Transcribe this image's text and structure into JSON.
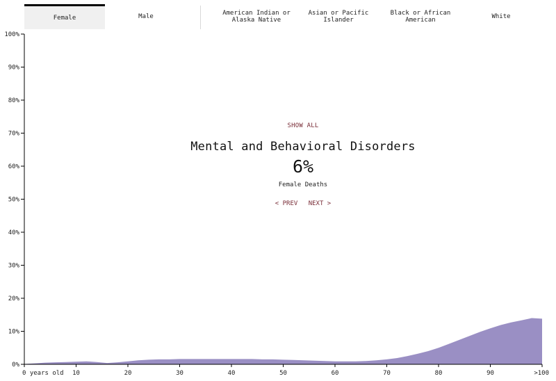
{
  "tabs": [
    {
      "label": "Female",
      "active": true
    },
    {
      "label": "Male",
      "active": false
    },
    {
      "label": "American Indian or\nAlaska Native",
      "active": false
    },
    {
      "label": "Asian or Pacific\nIslander",
      "active": false
    },
    {
      "label": "Black or African\nAmerican",
      "active": false
    },
    {
      "label": "White",
      "active": false
    }
  ],
  "overlay": {
    "show_all": "SHOW ALL",
    "title": "Mental and Behavioral Disorders",
    "value": "6%",
    "subtitle": "Female Deaths",
    "prev": "< PREV",
    "next": "NEXT >"
  },
  "colors": {
    "area_fill": "#9a8fc4",
    "link": "#7a2e38",
    "active_tab_bg": "#f0f0f0"
  },
  "chart_data": {
    "type": "area",
    "title": "Mental and Behavioral Disorders",
    "xlabel": "",
    "ylabel": "",
    "xlim": [
      0,
      100
    ],
    "ylim": [
      0,
      100
    ],
    "x_ticks": [
      0,
      10,
      20,
      30,
      40,
      50,
      60,
      70,
      80,
      90,
      100
    ],
    "x_tick_labels": [
      "0 years old",
      "10",
      "20",
      "30",
      "40",
      "50",
      "60",
      "70",
      "80",
      "90",
      ">100"
    ],
    "y_ticks": [
      0,
      10,
      20,
      30,
      40,
      50,
      60,
      70,
      80,
      90,
      100
    ],
    "y_tick_labels": [
      "0%",
      "10%",
      "20%",
      "30%",
      "40%",
      "50%",
      "60%",
      "70%",
      "80%",
      "90%",
      "100%"
    ],
    "series": [
      {
        "x": [
          0,
          2,
          4,
          6,
          8,
          10,
          12,
          14,
          16,
          18,
          20,
          22,
          24,
          26,
          28,
          30,
          32,
          34,
          36,
          38,
          40,
          42,
          44,
          46,
          48,
          50,
          52,
          54,
          56,
          58,
          60,
          62,
          64,
          66,
          68,
          70,
          72,
          74,
          76,
          78,
          80,
          82,
          84,
          86,
          88,
          90,
          92,
          94,
          96,
          98,
          100
        ],
        "values": [
          0.1,
          0.3,
          0.5,
          0.6,
          0.7,
          0.8,
          0.9,
          0.7,
          0.4,
          0.6,
          0.9,
          1.2,
          1.4,
          1.5,
          1.5,
          1.6,
          1.6,
          1.6,
          1.6,
          1.6,
          1.6,
          1.6,
          1.6,
          1.5,
          1.5,
          1.4,
          1.3,
          1.2,
          1.1,
          1.0,
          0.9,
          0.9,
          0.9,
          1.0,
          1.2,
          1.5,
          1.9,
          2.5,
          3.2,
          4.0,
          5.0,
          6.2,
          7.4,
          8.6,
          9.8,
          10.9,
          11.9,
          12.7,
          13.3,
          14.0,
          13.8
        ]
      }
    ],
    "grid": false,
    "legend": "none"
  }
}
